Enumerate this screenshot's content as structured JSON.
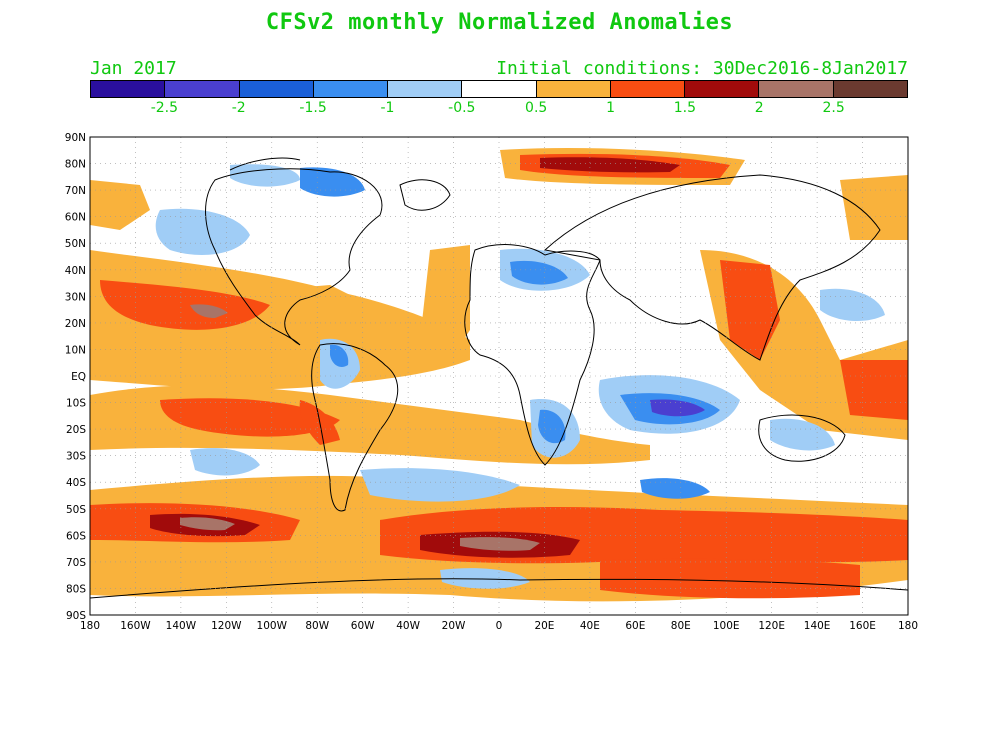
{
  "title": "CFSv2 monthly Normalized Anomalies",
  "month_label": "Jan 2017",
  "init_label": "Initial conditions: 30Dec2016-8Jan2017",
  "colorbar": {
    "colors": [
      "#2a0f9e",
      "#4a3fd0",
      "#1a5fd8",
      "#3a8ef0",
      "#a0cdf6",
      "#ffffff",
      "#f9b23c",
      "#f84d12",
      "#a10b0b",
      "#a87468",
      "#6b3a30"
    ],
    "labels": [
      "-2.5",
      "-2",
      "-1.5",
      "-1",
      "-0.5",
      "0.5",
      "1",
      "1.5",
      "2",
      "2.5"
    ]
  },
  "axes": {
    "lat_labels": [
      "90N",
      "80N",
      "70N",
      "60N",
      "50N",
      "40N",
      "30N",
      "20N",
      "10N",
      "EQ",
      "10S",
      "20S",
      "30S",
      "40S",
      "50S",
      "60S",
      "70S",
      "80S",
      "90S"
    ],
    "lon_labels": [
      "180",
      "160W",
      "140W",
      "120W",
      "100W",
      "80W",
      "60W",
      "40W",
      "20W",
      "0",
      "20E",
      "40E",
      "60E",
      "80E",
      "100E",
      "120E",
      "140E",
      "160E",
      "180"
    ]
  }
}
